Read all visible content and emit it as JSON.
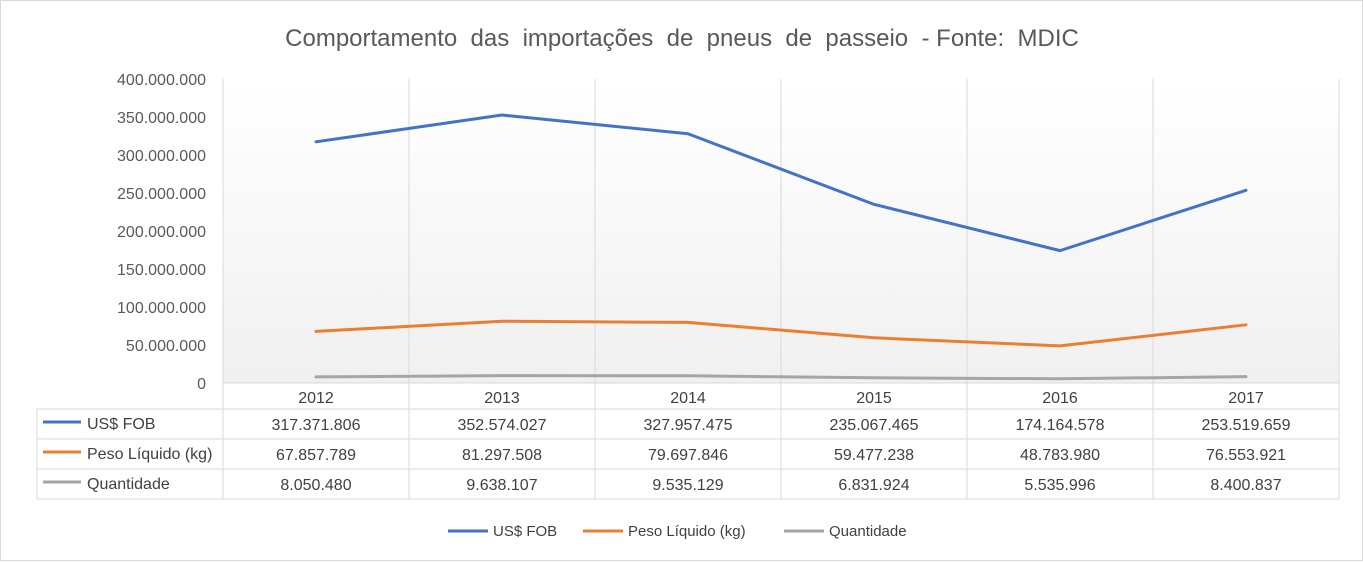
{
  "chart_data": {
    "type": "line",
    "title": "Comportamento  das  importações  de  pneus  de  passeio  - Fonte:  MDIC",
    "categories": [
      "2012",
      "2013",
      "2014",
      "2015",
      "2016",
      "2017"
    ],
    "ylim": [
      0,
      400000000
    ],
    "yticks": [
      0,
      50000000,
      100000000,
      150000000,
      200000000,
      250000000,
      300000000,
      350000000,
      400000000
    ],
    "ytick_labels": [
      "0",
      "50.000.000",
      "100.000.000",
      "150.000.000",
      "200.000.000",
      "250.000.000",
      "300.000.000",
      "350.000.000",
      "400.000.000"
    ],
    "grid": "vertical",
    "legend_position": "bottom",
    "data_table": true,
    "series": [
      {
        "name": "US$ FOB",
        "color": "#4472c4",
        "values": [
          317371806,
          352574027,
          327957475,
          235067465,
          174164578,
          253519659
        ],
        "labels": [
          "317.371.806",
          "352.574.027",
          "327.957.475",
          "235.067.465",
          "174.164.578",
          "253.519.659"
        ]
      },
      {
        "name": "Peso Líquido (kg)",
        "color": "#ed7d31",
        "values": [
          67857789,
          81297508,
          79697846,
          59477238,
          48783980,
          76553921
        ],
        "labels": [
          "67.857.789",
          "81.297.508",
          "79.697.846",
          "59.477.238",
          "48.783.980",
          "76.553.921"
        ]
      },
      {
        "name": "Quantidade",
        "color": "#a5a5a5",
        "values": [
          8050480,
          9638107,
          9535129,
          6831924,
          5535996,
          8400837
        ],
        "labels": [
          "8.050.480",
          "9.638.107",
          "9.535.129",
          "6.831.924",
          "5.535.996",
          "8.400.837"
        ]
      }
    ]
  }
}
